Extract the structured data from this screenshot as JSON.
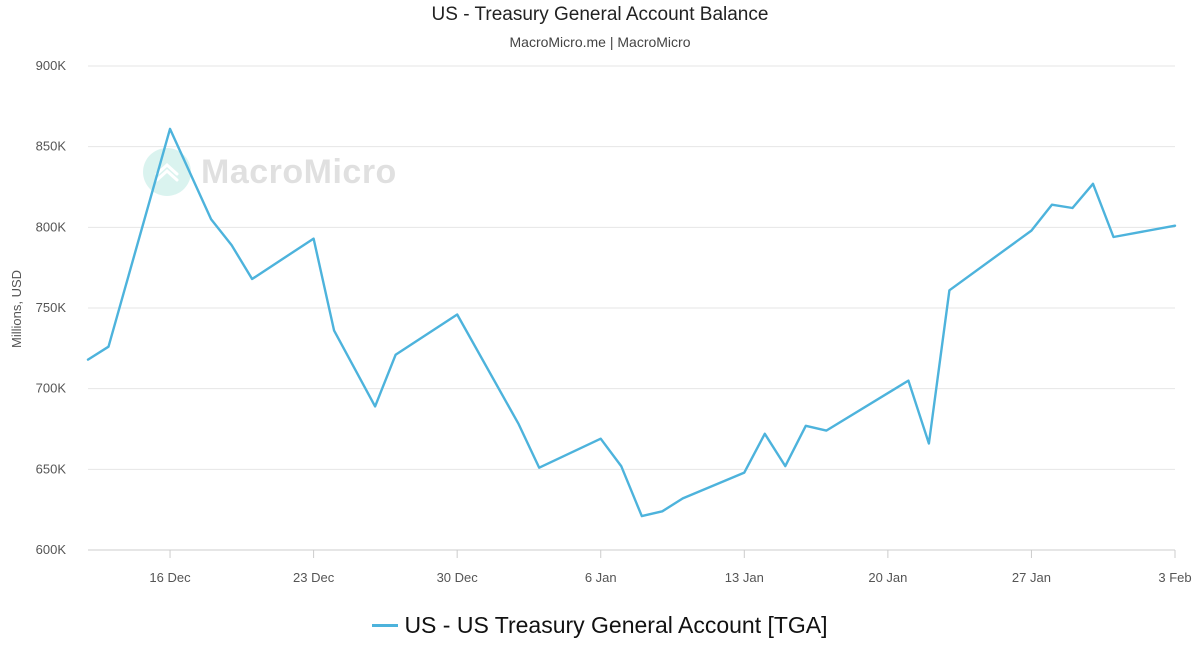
{
  "chart_data": {
    "type": "line",
    "title": "US - Treasury General Account Balance",
    "subtitle": "MacroMicro.me | MacroMicro",
    "ylabel": "Millions, USD",
    "xlabel": "",
    "ylim": [
      600000,
      900000
    ],
    "ytick_values": [
      600000,
      650000,
      700000,
      750000,
      800000,
      850000,
      900000
    ],
    "ytick_labels": [
      "600K",
      "650K",
      "700K",
      "750K",
      "800K",
      "850K",
      "900K"
    ],
    "xlim": [
      "2024-12-12",
      "2025-02-03"
    ],
    "xtick_values": [
      "2024-12-16",
      "2024-12-23",
      "2024-12-30",
      "2025-01-06",
      "2025-01-13",
      "2025-01-20",
      "2025-01-27",
      "2025-02-03"
    ],
    "xtick_labels": [
      "16 Dec",
      "23 Dec",
      "30 Dec",
      "6 Jan",
      "13 Jan",
      "20 Jan",
      "27 Jan",
      "3 Feb"
    ],
    "grid": true,
    "legend_position": "bottom-center",
    "series": [
      {
        "name": "US - US Treasury General Account [TGA]",
        "color": "#4db3dc",
        "points": [
          [
            "2024-12-12",
            718000
          ],
          [
            "2024-12-13",
            726000
          ],
          [
            "2024-12-16",
            861000
          ],
          [
            "2024-12-18",
            805000
          ],
          [
            "2024-12-19",
            789000
          ],
          [
            "2024-12-20",
            768000
          ],
          [
            "2024-12-23",
            793000
          ],
          [
            "2024-12-24",
            736000
          ],
          [
            "2024-12-26",
            689000
          ],
          [
            "2024-12-27",
            721000
          ],
          [
            "2024-12-30",
            746000
          ],
          [
            "2025-01-02",
            678000
          ],
          [
            "2025-01-03",
            651000
          ],
          [
            "2025-01-06",
            669000
          ],
          [
            "2025-01-07",
            652000
          ],
          [
            "2025-01-08",
            621000
          ],
          [
            "2025-01-09",
            624000
          ],
          [
            "2025-01-10",
            632000
          ],
          [
            "2025-01-13",
            648000
          ],
          [
            "2025-01-14",
            672000
          ],
          [
            "2025-01-15",
            652000
          ],
          [
            "2025-01-16",
            677000
          ],
          [
            "2025-01-17",
            674000
          ],
          [
            "2025-01-21",
            705000
          ],
          [
            "2025-01-22",
            666000
          ],
          [
            "2025-01-23",
            761000
          ],
          [
            "2025-01-27",
            798000
          ],
          [
            "2025-01-28",
            814000
          ],
          [
            "2025-01-29",
            812000
          ],
          [
            "2025-01-30",
            827000
          ],
          [
            "2025-01-31",
            794000
          ],
          [
            "2025-02-03",
            801000
          ]
        ]
      }
    ]
  },
  "watermark": {
    "text": "MacroMicro"
  }
}
